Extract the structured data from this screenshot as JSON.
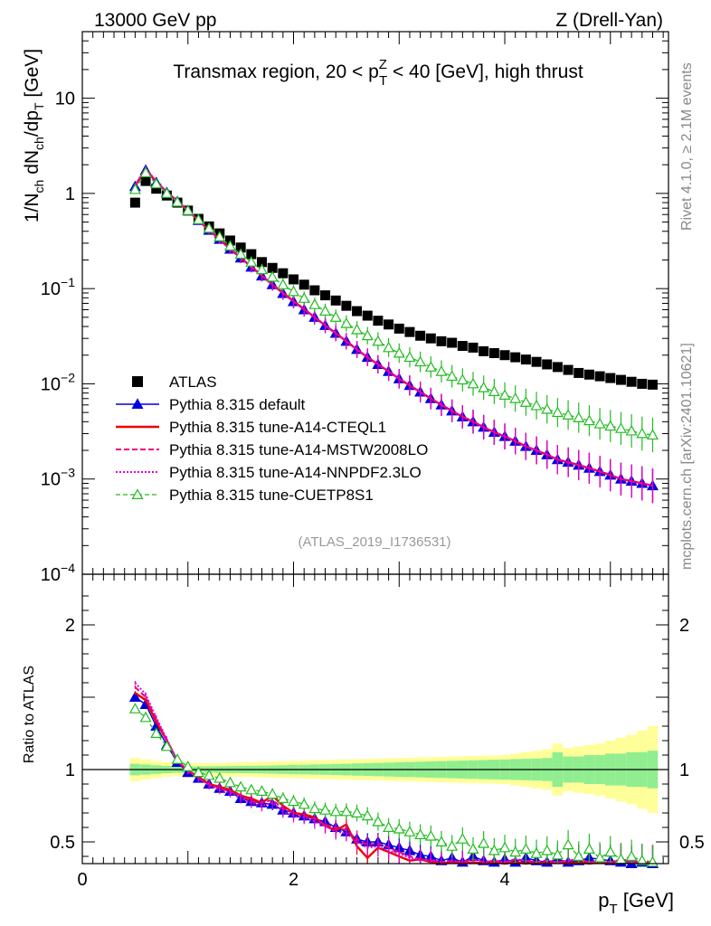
{
  "header": {
    "energy": "13000 GeV pp",
    "process": "Z (Drell-Yan)",
    "right_top": "Rivet 4.1.0, ≥ 2.1M events",
    "right_bottom": "mcplots.cern.ch [arXiv:2401.10621]",
    "analysis_id": "(ATLAS_2019_I1736531)"
  },
  "colors": {
    "atlas": "#000000",
    "default": "#0000dd",
    "cteql1": "#ee0000",
    "mstw": "#ee0077",
    "nnpdf": "#dd00dd",
    "cuetp8s1": "#22bb22",
    "band_inner": "#90ee90",
    "band_outer": "#ffff99"
  },
  "chart_data": [
    {
      "type": "scatter",
      "panel": "main",
      "title_parts": {
        "pre": "Transmax region, 20 < p",
        "sup": "Z",
        "sub": "T",
        "post": " < 40 [GeV], high thrust"
      },
      "ylabel_parts": [
        "1/N",
        "ch",
        " dN",
        "ch",
        "/dp",
        "T",
        " [GeV]"
      ],
      "yscale": "log",
      "xlim": [
        0,
        5.55
      ],
      "ylim": [
        0.0001,
        50
      ],
      "yticks": [
        {
          "v": 10,
          "base": "10",
          "exp": ""
        },
        {
          "v": 1,
          "base": "1",
          "exp": ""
        },
        {
          "v": 0.1,
          "base": "10",
          "exp": "−1"
        },
        {
          "v": 0.01,
          "base": "10",
          "exp": "−2"
        },
        {
          "v": 0.001,
          "base": "10",
          "exp": "−3"
        },
        {
          "v": 0.0001,
          "base": "10",
          "exp": "−4"
        }
      ],
      "x": [
        0.5,
        0.6,
        0.7,
        0.8,
        0.9,
        1.0,
        1.1,
        1.2,
        1.3,
        1.4,
        1.5,
        1.6,
        1.7,
        1.8,
        1.9,
        2.0,
        2.1,
        2.2,
        2.3,
        2.4,
        2.5,
        2.6,
        2.7,
        2.8,
        2.9,
        3.0,
        3.1,
        3.2,
        3.3,
        3.4,
        3.5,
        3.6,
        3.7,
        3.8,
        3.9,
        4.0,
        4.1,
        4.2,
        4.3,
        4.4,
        4.5,
        4.6,
        4.7,
        4.8,
        4.9,
        5.0,
        5.1,
        5.2,
        5.3,
        5.4
      ],
      "series": [
        {
          "name": "ATLAS",
          "key": "atlas",
          "values": [
            0.8,
            1.35,
            1.12,
            0.95,
            0.8,
            0.66,
            0.54,
            0.45,
            0.38,
            0.32,
            0.27,
            0.23,
            0.19,
            0.165,
            0.145,
            0.125,
            0.11,
            0.096,
            0.085,
            0.075,
            0.066,
            0.058,
            0.052,
            0.046,
            0.042,
            0.038,
            0.035,
            0.032,
            0.03,
            0.028,
            0.027,
            0.025,
            0.024,
            0.022,
            0.021,
            0.02,
            0.019,
            0.018,
            0.017,
            0.016,
            0.015,
            0.014,
            0.013,
            0.0125,
            0.012,
            0.0115,
            0.011,
            0.0105,
            0.01,
            0.0098
          ]
        },
        {
          "name": "Pythia 8.315 default",
          "key": "default",
          "values": [
            1.18,
            1.75,
            1.3,
            1.02,
            0.82,
            0.66,
            0.52,
            0.41,
            0.33,
            0.26,
            0.21,
            0.168,
            0.136,
            0.11,
            0.089,
            0.073,
            0.06,
            0.05,
            0.041,
            0.034,
            0.028,
            0.023,
            0.019,
            0.016,
            0.0135,
            0.0113,
            0.0096,
            0.0082,
            0.007,
            0.006,
            0.0052,
            0.0045,
            0.004,
            0.0035,
            0.0031,
            0.0028,
            0.0025,
            0.0022,
            0.002,
            0.0018,
            0.0016,
            0.0015,
            0.0014,
            0.0013,
            0.0012,
            0.0011,
            0.001,
            0.00095,
            0.0009,
            0.00085
          ]
        },
        {
          "name": "Pythia 8.315 tune-A14-CTEQL1",
          "key": "cteql1",
          "values": [
            1.2,
            1.8,
            1.32,
            1.03,
            0.83,
            0.66,
            0.52,
            0.41,
            0.33,
            0.26,
            0.21,
            0.17,
            0.137,
            0.11,
            0.09,
            0.074,
            0.061,
            0.05,
            0.041,
            0.034,
            0.028,
            0.023,
            0.019,
            0.016,
            0.0135,
            0.0113,
            0.0096,
            0.0082,
            0.007,
            0.006,
            0.0052,
            0.0045,
            0.004,
            0.0035,
            0.0031,
            0.0028,
            0.0025,
            0.0022,
            0.002,
            0.0018,
            0.0016,
            0.0015,
            0.0014,
            0.0013,
            0.0012,
            0.0011,
            0.001,
            0.00095,
            0.0009,
            0.00085
          ]
        },
        {
          "name": "Pythia 8.315 tune-A14-MSTW2008LO",
          "key": "mstw",
          "values": [
            1.22,
            1.82,
            1.33,
            1.04,
            0.83,
            0.66,
            0.52,
            0.41,
            0.33,
            0.26,
            0.21,
            0.169,
            0.137,
            0.11,
            0.09,
            0.074,
            0.061,
            0.05,
            0.041,
            0.034,
            0.028,
            0.023,
            0.019,
            0.016,
            0.0135,
            0.0113,
            0.0096,
            0.0082,
            0.007,
            0.006,
            0.0052,
            0.0045,
            0.004,
            0.0035,
            0.0031,
            0.0028,
            0.0025,
            0.0022,
            0.002,
            0.0018,
            0.0016,
            0.0015,
            0.0014,
            0.0013,
            0.0012,
            0.0011,
            0.001,
            0.00095,
            0.0009,
            0.00085
          ]
        },
        {
          "name": "Pythia 8.315 tune-A14-NNPDF2.3LO",
          "key": "nnpdf",
          "values": [
            1.22,
            1.84,
            1.34,
            1.04,
            0.83,
            0.66,
            0.52,
            0.41,
            0.33,
            0.26,
            0.21,
            0.169,
            0.137,
            0.11,
            0.089,
            0.073,
            0.06,
            0.05,
            0.041,
            0.034,
            0.028,
            0.023,
            0.019,
            0.016,
            0.0135,
            0.0113,
            0.0096,
            0.0082,
            0.007,
            0.006,
            0.0052,
            0.0045,
            0.004,
            0.0035,
            0.0031,
            0.0028,
            0.0025,
            0.0022,
            0.002,
            0.0018,
            0.0016,
            0.0015,
            0.0014,
            0.0013,
            0.0012,
            0.0011,
            0.001,
            0.00095,
            0.0009,
            0.00085
          ]
        },
        {
          "name": "Pythia 8.315 tune-CUETP8S1",
          "key": "cuetp8s1",
          "values": [
            1.1,
            1.65,
            1.26,
            1.0,
            0.81,
            0.66,
            0.53,
            0.43,
            0.35,
            0.28,
            0.23,
            0.19,
            0.158,
            0.132,
            0.11,
            0.093,
            0.079,
            0.068,
            0.058,
            0.05,
            0.043,
            0.037,
            0.032,
            0.028,
            0.024,
            0.021,
            0.019,
            0.017,
            0.015,
            0.0135,
            0.012,
            0.011,
            0.01,
            0.0091,
            0.0083,
            0.0076,
            0.007,
            0.0064,
            0.0059,
            0.0054,
            0.005,
            0.0047,
            0.0044,
            0.0041,
            0.0038,
            0.0036,
            0.0034,
            0.0032,
            0.003,
            0.0029
          ]
        }
      ]
    },
    {
      "type": "line",
      "panel": "ratio",
      "ylabel": "Ratio to ATLAS",
      "xlabel_parts": [
        "p",
        "T",
        " [GeV]"
      ],
      "xlim": [
        0,
        5.55
      ],
      "ylim": [
        0.35,
        2.35
      ],
      "xticks": [
        0,
        2,
        4
      ],
      "xtick_labels": [
        "0",
        "2",
        "4"
      ],
      "yticks": [
        0.5,
        1,
        2
      ],
      "ytick_labels": [
        "0.5",
        "1",
        "2"
      ],
      "band_x_edges": [
        0.45,
        0.55,
        0.65,
        0.75,
        0.85,
        0.95,
        1.05,
        1.15,
        1.25,
        1.35,
        1.45,
        1.55,
        1.65,
        1.75,
        1.85,
        1.95,
        2.05,
        2.15,
        2.25,
        2.35,
        2.45,
        2.55,
        2.65,
        2.75,
        2.85,
        2.95,
        3.05,
        3.15,
        3.25,
        3.35,
        3.45,
        3.55,
        3.65,
        3.75,
        3.85,
        3.95,
        4.05,
        4.15,
        4.25,
        4.35,
        4.45,
        4.55,
        4.65,
        4.75,
        4.85,
        4.95,
        5.05,
        5.15,
        5.25,
        5.35,
        5.45
      ],
      "band_inner": [
        0.04,
        0.035,
        0.03,
        0.025,
        0.022,
        0.022,
        0.022,
        0.022,
        0.023,
        0.024,
        0.025,
        0.026,
        0.027,
        0.028,
        0.03,
        0.032,
        0.033,
        0.035,
        0.036,
        0.038,
        0.04,
        0.042,
        0.044,
        0.046,
        0.048,
        0.05,
        0.052,
        0.054,
        0.056,
        0.058,
        0.06,
        0.062,
        0.064,
        0.066,
        0.068,
        0.07,
        0.072,
        0.074,
        0.076,
        0.08,
        0.12,
        0.09,
        0.09,
        0.1,
        0.1,
        0.11,
        0.11,
        0.12,
        0.12,
        0.13
      ],
      "band_outer": [
        0.08,
        0.07,
        0.06,
        0.05,
        0.045,
        0.045,
        0.045,
        0.045,
        0.046,
        0.048,
        0.05,
        0.052,
        0.054,
        0.056,
        0.058,
        0.06,
        0.062,
        0.064,
        0.066,
        0.068,
        0.07,
        0.072,
        0.074,
        0.076,
        0.078,
        0.08,
        0.082,
        0.084,
        0.086,
        0.088,
        0.09,
        0.092,
        0.094,
        0.096,
        0.098,
        0.1,
        0.11,
        0.12,
        0.13,
        0.14,
        0.18,
        0.15,
        0.16,
        0.17,
        0.18,
        0.2,
        0.22,
        0.24,
        0.27,
        0.3
      ],
      "series": [
        {
          "name": "Pythia 8.315 default",
          "key": "default",
          "values": [
            1.5,
            1.45,
            1.3,
            1.17,
            1.05,
            0.98,
            0.94,
            0.9,
            0.87,
            0.85,
            0.8,
            0.78,
            0.77,
            0.76,
            0.72,
            0.7,
            0.68,
            0.66,
            0.64,
            0.6,
            0.57,
            0.52,
            0.5,
            0.5,
            0.48,
            0.46,
            0.44,
            0.41,
            0.4,
            0.37,
            0.39,
            0.36,
            0.4,
            0.37,
            0.36,
            0.38,
            0.36,
            0.39,
            0.37,
            0.36,
            0.38,
            0.36,
            0.37,
            0.39,
            0.38,
            0.37,
            0.36,
            0.35,
            0.36,
            0.35
          ]
        },
        {
          "name": "Pythia 8.315 tune-A14-CTEQL1",
          "key": "cteql1",
          "values": [
            1.53,
            1.48,
            1.33,
            1.2,
            1.06,
            0.99,
            0.95,
            0.9,
            0.88,
            0.86,
            0.82,
            0.8,
            0.77,
            0.82,
            0.75,
            0.7,
            0.69,
            0.67,
            0.61,
            0.58,
            0.62,
            0.47,
            0.39,
            0.46,
            0.43,
            0.4,
            0.37,
            0.38,
            0.36,
            0.35,
            0.36,
            0.35,
            0.36,
            0.35,
            0.36,
            0.35,
            0.36,
            0.35,
            0.36,
            0.35,
            0.36,
            0.35,
            0.36,
            0.35,
            0.36,
            0.35,
            0.38,
            0.36,
            0.35,
            0.36
          ]
        },
        {
          "name": "Pythia 8.315 tune-A14-MSTW2008LO",
          "key": "mstw",
          "values": [
            1.57,
            1.5,
            1.35,
            1.2,
            1.06,
            0.99,
            0.94,
            0.9,
            0.87,
            0.85,
            0.82,
            0.78,
            0.77,
            0.79,
            0.73,
            0.7,
            0.68,
            0.66,
            0.62,
            0.6,
            0.58,
            0.52,
            0.48,
            0.49,
            0.46,
            0.43,
            0.4,
            0.38,
            0.37,
            0.36,
            0.37,
            0.36,
            0.38,
            0.36,
            0.37,
            0.36,
            0.38,
            0.37,
            0.36,
            0.37,
            0.36,
            0.37,
            0.38,
            0.36,
            0.37,
            0.36,
            0.37,
            0.36,
            0.37,
            0.36
          ]
        },
        {
          "name": "Pythia 8.315 tune-A14-NNPDF2.3LO",
          "key": "nnpdf",
          "values": [
            1.6,
            1.52,
            1.36,
            1.21,
            1.06,
            0.99,
            0.94,
            0.89,
            0.86,
            0.84,
            0.8,
            0.77,
            0.75,
            0.77,
            0.71,
            0.68,
            0.67,
            0.64,
            0.61,
            0.57,
            0.56,
            0.5,
            0.46,
            0.47,
            0.44,
            0.42,
            0.39,
            0.37,
            0.38,
            0.36,
            0.37,
            0.36,
            0.38,
            0.36,
            0.37,
            0.36,
            0.38,
            0.37,
            0.36,
            0.37,
            0.36,
            0.37,
            0.38,
            0.36,
            0.37,
            0.36,
            0.37,
            0.36,
            0.37,
            0.36
          ]
        },
        {
          "name": "Pythia 8.315 tune-CUETP8S1",
          "key": "cuetp8s1",
          "values": [
            1.42,
            1.36,
            1.25,
            1.16,
            1.07,
            1.02,
            0.98,
            0.96,
            0.94,
            0.91,
            0.88,
            0.86,
            0.85,
            0.83,
            0.8,
            0.78,
            0.76,
            0.73,
            0.72,
            0.71,
            0.71,
            0.7,
            0.68,
            0.64,
            0.6,
            0.59,
            0.57,
            0.55,
            0.54,
            0.5,
            0.47,
            0.52,
            0.45,
            0.49,
            0.44,
            0.46,
            0.43,
            0.45,
            0.42,
            0.44,
            0.41,
            0.48,
            0.4,
            0.45,
            0.39,
            0.43,
            0.38,
            0.4,
            0.37,
            0.36
          ]
        }
      ]
    }
  ]
}
